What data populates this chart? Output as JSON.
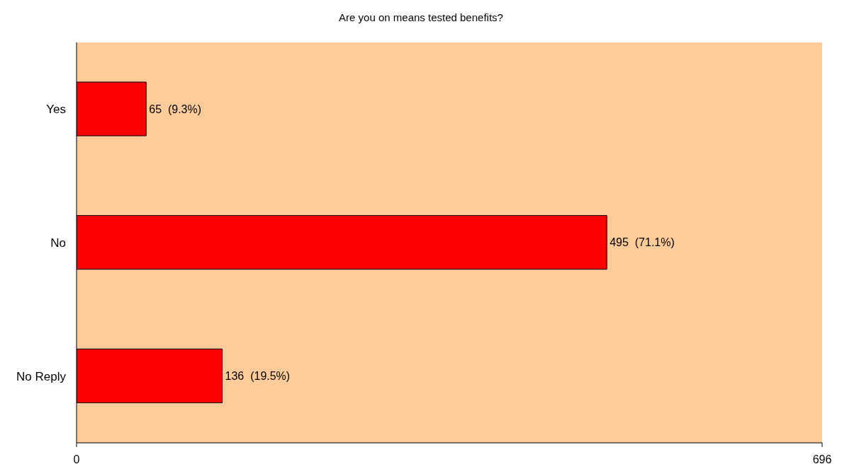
{
  "chart_data": {
    "type": "bar",
    "orientation": "horizontal",
    "title": "Are you on means tested benefits?",
    "categories": [
      "Yes",
      "No",
      "No Reply"
    ],
    "values": [
      65,
      495,
      136
    ],
    "color": "#ff0000",
    "value_labels": [
      "65  (9.3%)",
      "495  (71.1%)",
      "136  (19.5%)"
    ],
    "xlim": [
      0,
      696
    ],
    "xticks": [
      0,
      696
    ]
  }
}
